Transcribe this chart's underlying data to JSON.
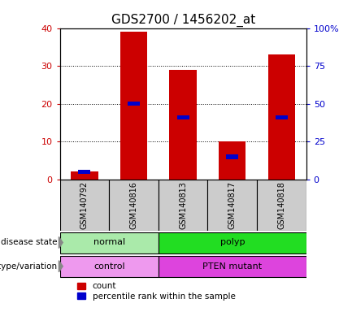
{
  "title": "GDS2700 / 1456202_at",
  "samples": [
    "GSM140792",
    "GSM140816",
    "GSM140813",
    "GSM140817",
    "GSM140818"
  ],
  "count_values": [
    2,
    39,
    29,
    10,
    33
  ],
  "percentile_values": [
    5,
    50,
    41,
    15,
    41
  ],
  "disease_state": [
    {
      "label": "normal",
      "span": [
        0,
        2
      ],
      "color": "#aaeaaa"
    },
    {
      "label": "polyp",
      "span": [
        2,
        5
      ],
      "color": "#22dd22"
    }
  ],
  "genotype": [
    {
      "label": "control",
      "span": [
        0,
        2
      ],
      "color": "#ee99ee"
    },
    {
      "label": "PTEN mutant",
      "span": [
        2,
        5
      ],
      "color": "#dd44dd"
    }
  ],
  "bar_color": "#cc0000",
  "percentile_color": "#0000cc",
  "left_ylim": [
    0,
    40
  ],
  "right_ylim": [
    0,
    100
  ],
  "left_yticks": [
    0,
    10,
    20,
    30,
    40
  ],
  "right_yticks": [
    0,
    25,
    50,
    75,
    100
  ],
  "right_yticklabels": [
    "0",
    "25",
    "50",
    "75",
    "100%"
  ],
  "title_fontsize": 11,
  "axis_label_color_left": "#cc0000",
  "axis_label_color_right": "#0000cc",
  "legend_count_label": "count",
  "legend_percentile_label": "percentile rank within the sample",
  "row_label_disease": "disease state",
  "row_label_genotype": "genotype/variation",
  "bar_width": 0.55,
  "sample_box_color": "#cccccc",
  "arrow_color": "#888888"
}
